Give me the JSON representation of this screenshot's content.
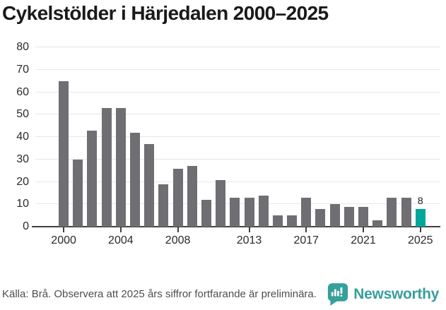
{
  "title": "Cykelstölder i Härjedalen 2000–2025",
  "footer": {
    "source_note": "Källa: Brå. Observera att 2025 års siffror fortfarande är preliminära.",
    "brand_name": "Newsworthy",
    "brand_icon": "newsworthy-speech-bubble-bar-chart-icon"
  },
  "colors": {
    "bar": "#6e6e73",
    "accent": "#00a69b",
    "brand": "#379f9c",
    "grid": "#e7e7e7",
    "axis": "#404040",
    "text": "#1a1a1a",
    "muted_text": "#4e4e52"
  },
  "chart_data": {
    "type": "bar",
    "title": "Cykelstölder i Härjedalen 2000–2025",
    "xlabel": "",
    "ylabel": "",
    "x": [
      2000,
      2001,
      2002,
      2003,
      2004,
      2005,
      2006,
      2007,
      2008,
      2009,
      2010,
      2011,
      2012,
      2013,
      2014,
      2015,
      2016,
      2017,
      2018,
      2019,
      2020,
      2021,
      2022,
      2023,
      2024,
      2025
    ],
    "values": [
      65,
      30,
      43,
      53,
      53,
      42,
      37,
      19,
      26,
      27,
      12,
      21,
      13,
      13,
      14,
      5,
      5,
      13,
      8,
      10,
      9,
      9,
      3,
      13,
      13,
      8
    ],
    "highlight_index": 25,
    "x_ticks": [
      2000,
      2004,
      2008,
      2013,
      2017,
      2021,
      2025
    ],
    "y_ticks": [
      0,
      10,
      20,
      30,
      40,
      50,
      60,
      70,
      80
    ],
    "ylim": [
      0,
      80
    ],
    "grid": true,
    "legend": false,
    "annotations": [
      {
        "x": 2025,
        "text": "8"
      }
    ]
  }
}
